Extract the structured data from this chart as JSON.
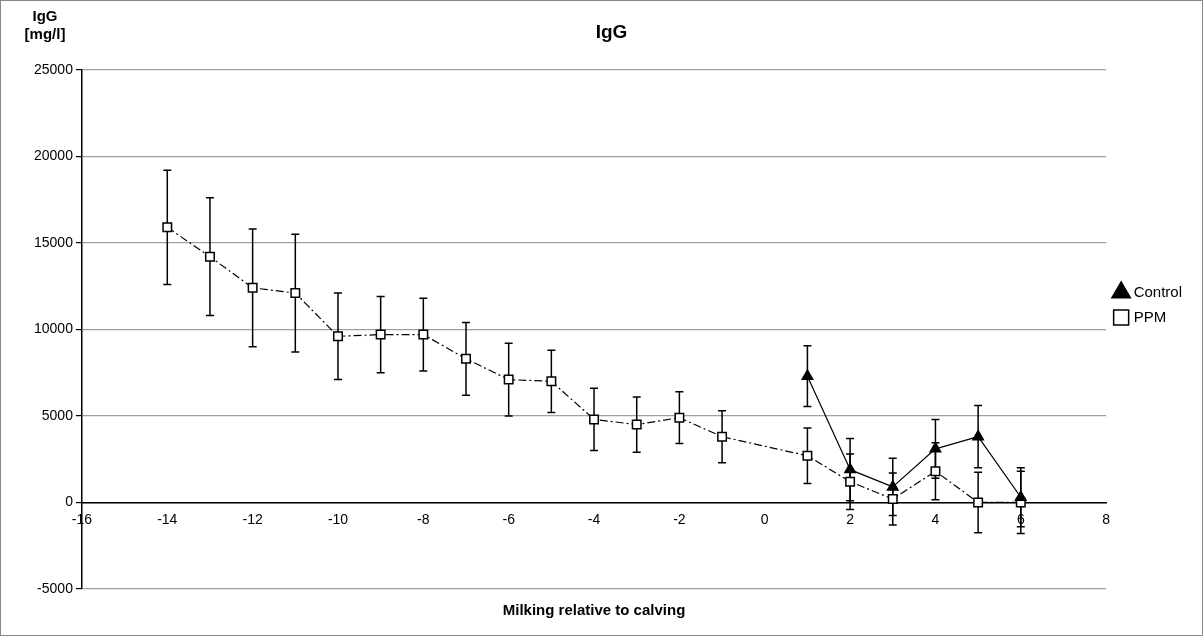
{
  "chart_data": {
    "type": "line",
    "title": "IgG",
    "ylabel": "IgG [mg/l]",
    "xlabel": "Milking relative to calving",
    "xlim": [
      -16,
      8
    ],
    "xticks": [
      -16,
      -14,
      -12,
      -10,
      -8,
      -6,
      -4,
      -2,
      0,
      2,
      4,
      6,
      8
    ],
    "ylim": [
      -5000,
      25000
    ],
    "yticks": [
      -5000,
      0,
      5000,
      10000,
      15000,
      20000,
      25000
    ],
    "grid": "y",
    "legend": "right",
    "series": [
      {
        "name": "Control",
        "color": "#000000",
        "marker": "triangle",
        "line_style": "solid",
        "x": [
          1,
          2,
          3,
          4,
          5,
          6
        ],
        "values": [
          7300,
          1900,
          900,
          3100,
          3800,
          300
        ],
        "errors": [
          1750,
          1800,
          1650,
          1700,
          1800,
          1700
        ]
      },
      {
        "name": "PPM",
        "color": "#000000",
        "marker": "square",
        "line_style": "dashed",
        "x": [
          -14,
          -13,
          -12,
          -11,
          -10,
          -9,
          -8,
          -7,
          -6,
          -5,
          -4,
          -3,
          -2,
          -1,
          1,
          2,
          3,
          4,
          5,
          6
        ],
        "values": [
          15900,
          14200,
          12400,
          12100,
          9600,
          9700,
          9700,
          8300,
          7100,
          7000,
          4800,
          4500,
          4900,
          3800,
          2700,
          1200,
          200,
          1800,
          0,
          0
        ],
        "errors": [
          3300,
          3400,
          3400,
          3400,
          2500,
          2200,
          2100,
          2100,
          2100,
          1800,
          1800,
          1600,
          1500,
          1500,
          1600,
          1600,
          1500,
          1650,
          1750,
          1800
        ]
      }
    ]
  }
}
